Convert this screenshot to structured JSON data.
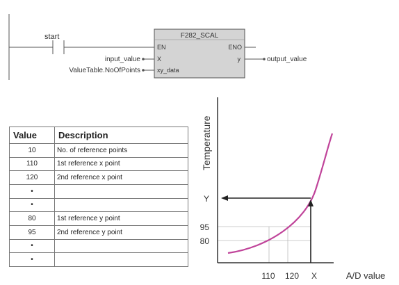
{
  "ladder": {
    "contact_label": "start",
    "block_title": "F282_SCAL",
    "pin_en": "EN",
    "pin_eno": "ENO",
    "pin_x": "X",
    "pin_y": "y",
    "pin_xy": "xy_data",
    "input_x": "input_value",
    "input_xy": "ValueTable.NoOfPoints",
    "output_y": "output_value"
  },
  "table": {
    "headers": [
      "Value",
      "Description"
    ],
    "rows": [
      {
        "value": "10",
        "desc": "No. of reference points"
      },
      {
        "value": "110",
        "desc": "1st reference x point"
      },
      {
        "value": "120",
        "desc": "2nd reference x point"
      },
      {
        "value": "•",
        "desc": ""
      },
      {
        "value": "•",
        "desc": ""
      },
      {
        "value": "80",
        "desc": "1st reference y point"
      },
      {
        "value": "95",
        "desc": "2nd reference y point"
      },
      {
        "value": "•",
        "desc": ""
      },
      {
        "value": "•",
        "desc": ""
      }
    ]
  },
  "graph": {
    "ylabel": "Temperature",
    "xlabel": "A/D value",
    "x_ticks": [
      "110",
      "120",
      "X"
    ],
    "y_ticks": [
      "Y",
      "95",
      "80"
    ],
    "curve_color": "#c0449a"
  }
}
